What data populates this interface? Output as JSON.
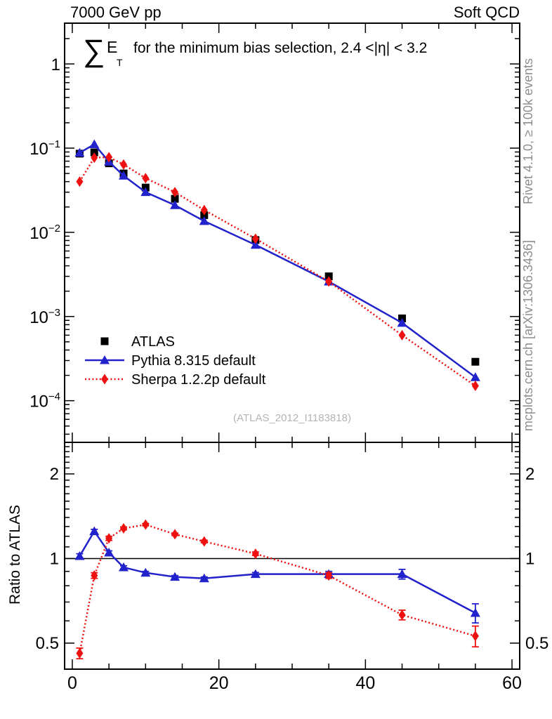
{
  "header": {
    "left": "7000 GeV pp",
    "right": "Soft QCD"
  },
  "title": {
    "sigma": "∑",
    "e": "E",
    "t_sub": "T",
    "rest": "for the minimum bias selection, 2.4 <|η| < 3.2"
  },
  "watermark": "(ATLAS_2012_I1183818)",
  "side_notes": {
    "top_right": "Rivet 4.1.0, ≥ 100k events",
    "bottom_right": "mcplots.cern.ch [arXiv:1306.3436]"
  },
  "legend": {
    "entries": [
      {
        "label": "ATLAS"
      },
      {
        "label": "Pythia 8.315 default"
      },
      {
        "label": "Sherpa 1.2.2p default"
      }
    ]
  },
  "chart_data": {
    "type": "line",
    "title": "∑ E_T for the minimum bias selection, 2.4 <|η| < 3.2",
    "xlabel": "",
    "ylabel": "",
    "ratio_ylabel": "Ratio to ATLAS",
    "x": [
      1,
      3,
      5,
      7,
      10,
      14,
      18,
      25,
      35,
      45,
      55
    ],
    "xlim": [
      -1.05,
      61.05
    ],
    "x_minor_step": 5,
    "x_major_ticks": [
      0,
      20,
      40,
      60
    ],
    "x_tick_labels": [
      {
        "label": "0",
        "value": 0
      },
      {
        "label": "20",
        "value": 20
      },
      {
        "label": "40",
        "value": 40
      },
      {
        "label": "60",
        "value": 60
      }
    ],
    "main_panel": {
      "scale": "log",
      "ylim": [
        3.2e-05,
        3.05
      ],
      "ytick_labels": [
        {
          "label": "1",
          "value": 1
        },
        {
          "mant": "10",
          "exp": "−1",
          "value": 0.1
        },
        {
          "mant": "10",
          "exp": "−2",
          "value": 0.01
        },
        {
          "mant": "10",
          "exp": "−3",
          "value": 0.001
        },
        {
          "mant": "10",
          "exp": "−4",
          "value": 0.0001
        }
      ]
    },
    "series": [
      {
        "name": "ATLAS",
        "color": "#000000",
        "marker": "square",
        "line": "none",
        "values": [
          0.086,
          0.089,
          0.066,
          0.05,
          0.034,
          0.025,
          0.016,
          0.0081,
          0.003,
          0.00095,
          0.00029
        ]
      },
      {
        "name": "Pythia 8.315 default",
        "color": "#2222cc",
        "marker": "triangle",
        "line": "solid",
        "values": [
          0.088,
          0.111,
          0.069,
          0.047,
          0.03,
          0.021,
          0.0136,
          0.0071,
          0.0026,
          0.00084,
          0.00019
        ]
      },
      {
        "name": "Sherpa 1.2.2p default",
        "color": "#ee1111",
        "marker": "diamond",
        "line": "dotted",
        "values": [
          0.04,
          0.077,
          0.078,
          0.064,
          0.044,
          0.03,
          0.0184,
          0.0084,
          0.0026,
          0.0006,
          0.00015
        ]
      }
    ],
    "ratio_panel": {
      "scale": "log",
      "ylim": [
        0.404,
        2.59
      ],
      "reference_line": 1,
      "ytick_labels": [
        {
          "label": "2",
          "value": 2
        },
        {
          "label": "1",
          "value": 1
        },
        {
          "label": "0.5",
          "value": 0.5
        }
      ],
      "series": [
        {
          "name": "Pythia 8.315 default",
          "values": [
            1.02,
            1.25,
            1.05,
            0.93,
            0.89,
            0.86,
            0.85,
            0.88,
            0.88,
            0.88,
            0.64
          ],
          "errors": [
            0.02,
            0.02,
            0.015,
            0.012,
            0.01,
            0.01,
            0.01,
            0.012,
            0.02,
            0.035,
            0.05
          ]
        },
        {
          "name": "Sherpa 1.2.2p default",
          "values": [
            0.46,
            0.87,
            1.18,
            1.28,
            1.32,
            1.22,
            1.15,
            1.04,
            0.87,
            0.63,
            0.53
          ],
          "errors": [
            0.02,
            0.02,
            0.02,
            0.015,
            0.012,
            0.012,
            0.012,
            0.015,
            0.02,
            0.025,
            0.045
          ]
        }
      ]
    }
  }
}
